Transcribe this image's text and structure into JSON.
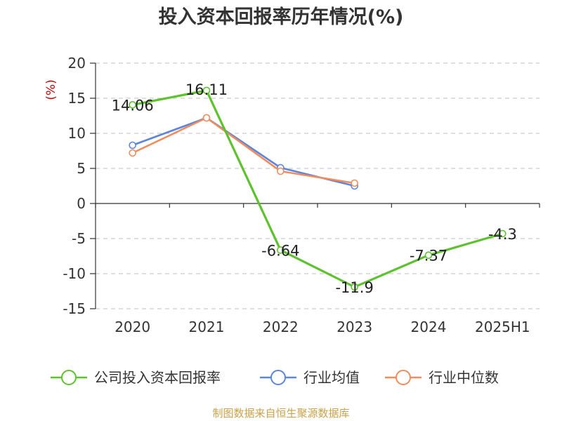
{
  "chart_data": {
    "type": "line",
    "title": "投入资本回报率历年情况(%)",
    "ylabel": "(%)",
    "xlabel": "",
    "categories": [
      "2020",
      "2021",
      "2022",
      "2023",
      "2024",
      "2025H1"
    ],
    "ylim": [
      -15,
      20
    ],
    "yticks": [
      20,
      15,
      10,
      5,
      0,
      -5,
      -10,
      -15
    ],
    "grid": true,
    "legend_position": "bottom",
    "series": [
      {
        "name": "公司投入资本回报率",
        "color": "#5ec22e",
        "values": [
          14.06,
          16.11,
          -6.64,
          -11.9,
          -7.37,
          -4.3
        ],
        "labels": [
          "14.06",
          "16.11",
          "-6.64",
          "-11.9",
          "-7.37",
          "-4.3"
        ]
      },
      {
        "name": "行业均值",
        "color": "#5b86db",
        "values": [
          8.3,
          12.2,
          5.1,
          2.5,
          null,
          null
        ]
      },
      {
        "name": "行业中位数",
        "color": "#f28c5c",
        "values": [
          7.2,
          12.2,
          4.6,
          2.9,
          null,
          null
        ]
      }
    ]
  },
  "source_note": "制图数据来自恒生聚源数据库",
  "colors": {
    "axis": "#333333",
    "grid": "#cccccc",
    "ylabel": "#cc0000",
    "source": "#c9a24a"
  }
}
